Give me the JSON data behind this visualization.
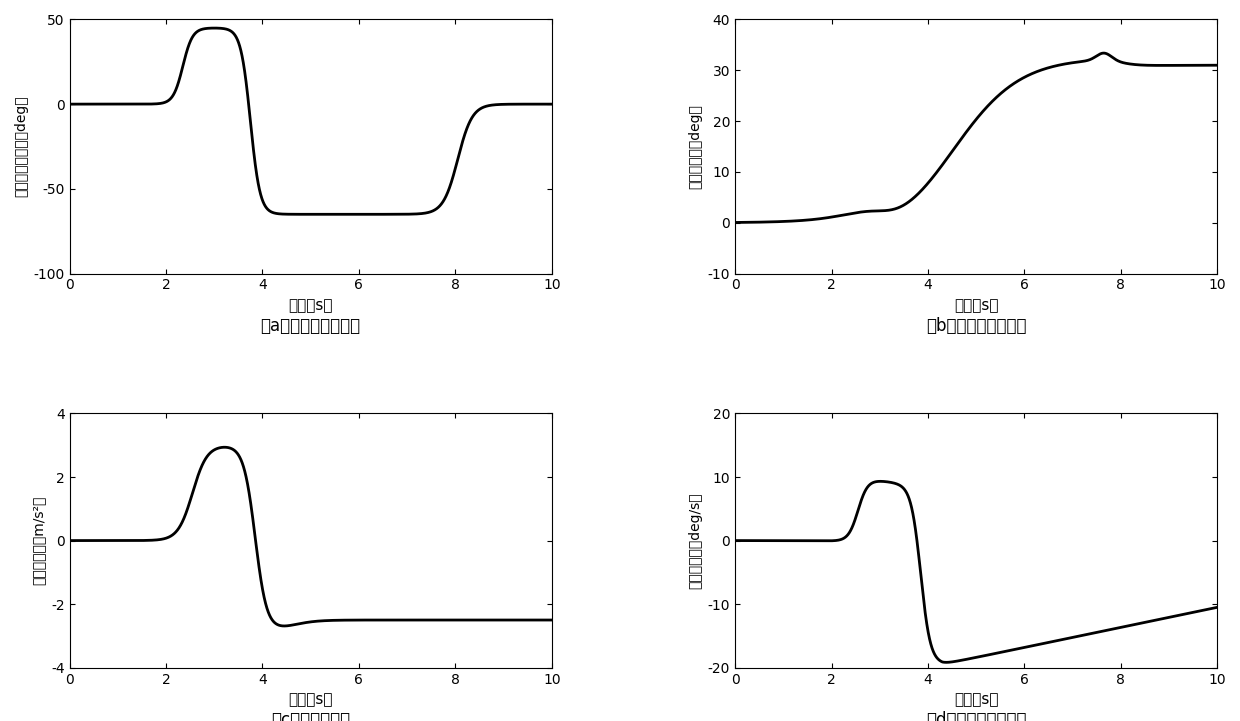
{
  "fig_width": 12.4,
  "fig_height": 7.21,
  "dpi": 100,
  "background_color": "#ffffff",
  "line_color": "#000000",
  "line_width": 2.0,
  "subplots": {
    "a": {
      "ylabel": "输入方向盘转车（deg）",
      "xlabel": "时间（s）",
      "caption": "（a）输入方向盘转车",
      "xlim": [
        0,
        10
      ],
      "ylim": [
        -100,
        50
      ],
      "yticks": [
        -100,
        -50,
        0,
        50
      ],
      "xticks": [
        0,
        2,
        4,
        6,
        8,
        10
      ]
    },
    "b": {
      "ylabel": "质心侧偏角（deg）",
      "xlabel": "时间（s）",
      "caption": "（b）车辆质心侧偏角",
      "xlim": [
        0,
        10
      ],
      "ylim": [
        -10,
        40
      ],
      "yticks": [
        -10,
        0,
        10,
        20,
        30,
        40
      ],
      "xticks": [
        0,
        2,
        4,
        6,
        8,
        10
      ]
    },
    "c": {
      "ylabel": "侧向加速度（m/s²）",
      "xlabel": "时间（s）",
      "caption": "（c）侧向加速度",
      "xlim": [
        0,
        10
      ],
      "ylim": [
        -4,
        4
      ],
      "yticks": [
        -4,
        -2,
        0,
        2,
        4
      ],
      "xticks": [
        0,
        2,
        4,
        6,
        8,
        10
      ]
    },
    "d": {
      "ylabel": "横摇角速度（deg/s）",
      "xlabel": "时间（s）",
      "caption": "（d）车辆横摇角速度",
      "xlim": [
        0,
        10
      ],
      "ylim": [
        -20,
        20
      ],
      "yticks": [
        -20,
        -10,
        0,
        10,
        20
      ],
      "xticks": [
        0,
        2,
        4,
        6,
        8,
        10
      ]
    }
  }
}
